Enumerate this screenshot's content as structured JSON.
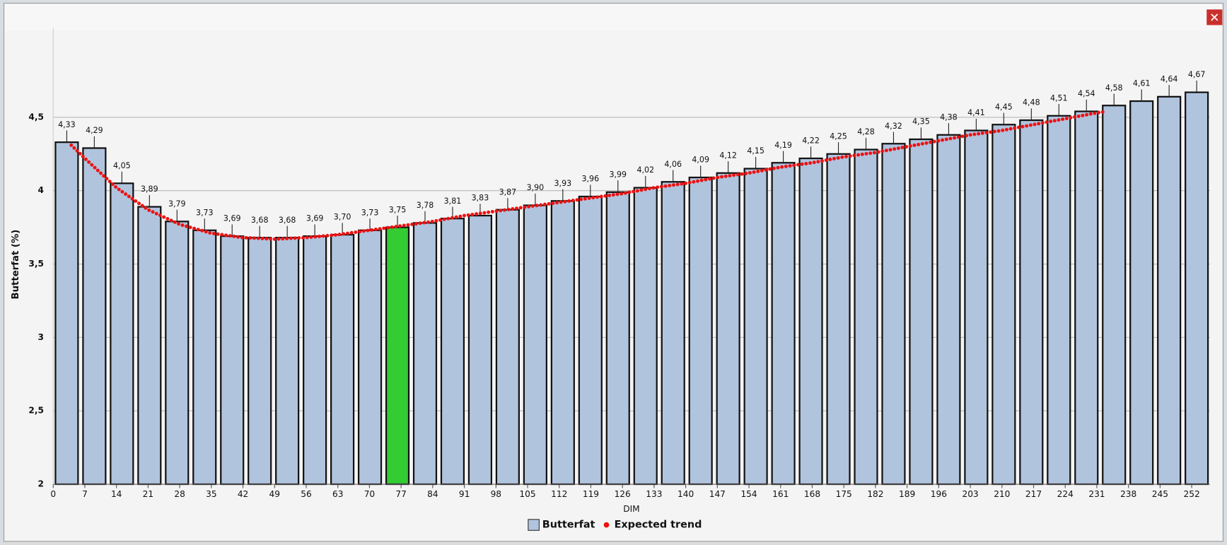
{
  "chart_data": {
    "type": "bar",
    "x_label": "DIM",
    "y_label": "Butterfat (%)",
    "x": [
      3,
      9.1,
      15.2,
      21.3,
      27.4,
      33.5,
      39.6,
      45.7,
      51.8,
      57.9,
      64,
      70.1,
      76.2,
      82.3,
      88.4,
      94.5,
      100.6,
      106.7,
      112.8,
      118.9,
      125,
      131.1,
      137.2,
      143.3,
      149.4,
      155.5,
      161.6,
      167.7,
      173.8,
      179.9,
      186,
      192.1,
      198.2,
      204.3,
      210.4,
      216.5,
      222.6,
      228.7,
      234.8,
      240.9,
      247,
      253.1
    ],
    "series": [
      {
        "name": "Butterfat",
        "color": "#b0c4de",
        "highlight_index": 12,
        "highlight_color": "#33cc33",
        "values": [
          4.33,
          4.29,
          4.05,
          3.89,
          3.79,
          3.73,
          3.69,
          3.68,
          3.68,
          3.69,
          3.7,
          3.73,
          3.75,
          3.78,
          3.81,
          3.83,
          3.87,
          3.9,
          3.93,
          3.96,
          3.99,
          4.02,
          4.06,
          4.09,
          4.12,
          4.15,
          4.19,
          4.22,
          4.25,
          4.28,
          4.32,
          4.35,
          4.38,
          4.41,
          4.45,
          4.48,
          4.51,
          4.54,
          4.58,
          4.61,
          4.64,
          4.67
        ],
        "value_labels": [
          "4,33",
          "4,29",
          "4,05",
          "3,89",
          "3,79",
          "3,73",
          "3,69",
          "3,68",
          "3,68",
          "3,69",
          "3,70",
          "3,73",
          "3,75",
          "3,78",
          "3,81",
          "3,83",
          "3,87",
          "3,90",
          "3,93",
          "3,96",
          "3,99",
          "4,02",
          "4,06",
          "4,09",
          "4,12",
          "4,15",
          "4,19",
          "4,22",
          "4,25",
          "4,28",
          "4,32",
          "4,35",
          "4,38",
          "4,41",
          "4,45",
          "4,48",
          "4,51",
          "4,54",
          "4,58",
          "4,61",
          "4,64",
          "4,67"
        ],
        "errors": [
          0.08,
          0.08,
          0.08,
          0.08,
          0.08,
          0.08,
          0.08,
          0.08,
          0.08,
          0.08,
          0.08,
          0.08,
          0.08,
          0.08,
          0.08,
          0.08,
          0.08,
          0.08,
          0.08,
          0.08,
          0.08,
          0.08,
          0.08,
          0.08,
          0.08,
          0.08,
          0.08,
          0.08,
          0.08,
          0.08,
          0.08,
          0.08,
          0.08,
          0.08,
          0.08,
          0.08,
          0.08,
          0.08,
          0.08,
          0.08,
          0.08,
          0.08
        ]
      },
      {
        "name": "Expected trend",
        "type": "line",
        "color": "#ee1111",
        "x": [
          4,
          7,
          14,
          21,
          28,
          35,
          42,
          49,
          56,
          63,
          70,
          77,
          84,
          91,
          98,
          105,
          112,
          119,
          126,
          133,
          140,
          147,
          154,
          161,
          168,
          175,
          182,
          189,
          196,
          203,
          210,
          217,
          224,
          231,
          233
        ],
        "values": [
          4.31,
          4.22,
          4.02,
          3.87,
          3.77,
          3.71,
          3.68,
          3.67,
          3.68,
          3.7,
          3.73,
          3.76,
          3.79,
          3.83,
          3.86,
          3.89,
          3.92,
          3.95,
          3.98,
          4.02,
          4.05,
          4.09,
          4.12,
          4.16,
          4.19,
          4.23,
          4.26,
          4.3,
          4.34,
          4.38,
          4.41,
          4.45,
          4.49,
          4.53,
          4.54
        ]
      }
    ],
    "xlim": [
      0,
      256
    ],
    "xticks": [
      0,
      7,
      14,
      21,
      28,
      35,
      42,
      49,
      56,
      63,
      70,
      77,
      84,
      91,
      98,
      105,
      112,
      119,
      126,
      133,
      140,
      147,
      154,
      161,
      168,
      175,
      182,
      189,
      196,
      203,
      210,
      217,
      224,
      231,
      238,
      245,
      252
    ],
    "ylim": [
      2,
      5
    ],
    "yticks": [
      2,
      {
        "value": 2.5,
        "label": "2,5"
      },
      3,
      {
        "value": 3.5,
        "label": "3,5"
      },
      4,
      {
        "value": 4.5,
        "label": "4,5"
      }
    ],
    "grid": true
  }
}
